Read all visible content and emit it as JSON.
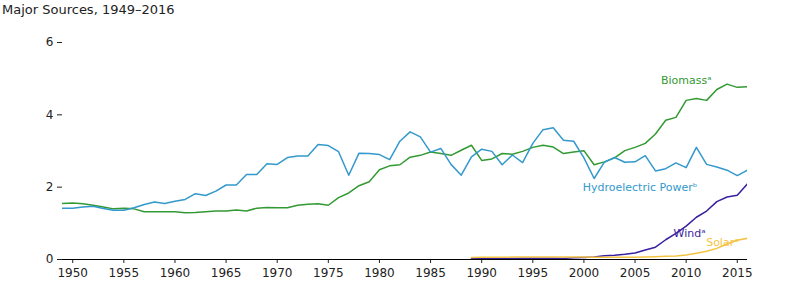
{
  "chart_data": {
    "type": "line",
    "title": "Major Sources, 1949–2016",
    "x": [
      1949,
      1950,
      1951,
      1952,
      1953,
      1954,
      1955,
      1956,
      1957,
      1958,
      1959,
      1960,
      1961,
      1962,
      1963,
      1964,
      1965,
      1966,
      1967,
      1968,
      1969,
      1970,
      1971,
      1972,
      1973,
      1974,
      1975,
      1976,
      1977,
      1978,
      1979,
      1980,
      1981,
      1982,
      1983,
      1984,
      1985,
      1986,
      1987,
      1988,
      1989,
      1990,
      1991,
      1992,
      1993,
      1994,
      1995,
      1996,
      1997,
      1998,
      1999,
      2000,
      2001,
      2002,
      2003,
      2004,
      2005,
      2006,
      2007,
      2008,
      2009,
      2010,
      2011,
      2012,
      2013,
      2014,
      2015,
      2016
    ],
    "series": [
      {
        "name": "Biomassᵃ",
        "color": "#339933",
        "values": [
          1.55,
          1.56,
          1.54,
          1.5,
          1.45,
          1.4,
          1.42,
          1.4,
          1.32,
          1.32,
          1.32,
          1.32,
          1.29,
          1.3,
          1.32,
          1.34,
          1.34,
          1.37,
          1.34,
          1.42,
          1.44,
          1.43,
          1.43,
          1.5,
          1.53,
          1.54,
          1.5,
          1.71,
          1.84,
          2.04,
          2.15,
          2.48,
          2.59,
          2.62,
          2.83,
          2.88,
          2.97,
          2.93,
          2.88,
          3.02,
          3.16,
          2.74,
          2.78,
          2.93,
          2.91,
          2.99,
          3.1,
          3.16,
          3.11,
          2.93,
          2.97,
          3.01,
          2.62,
          2.7,
          2.81,
          3.01,
          3.1,
          3.21,
          3.47,
          3.85,
          3.93,
          4.4,
          4.45,
          4.4,
          4.7,
          4.85,
          4.76,
          4.78
        ]
      },
      {
        "name": "Hydroelectric Powerᵇ",
        "color": "#3399cc",
        "values": [
          1.42,
          1.42,
          1.45,
          1.47,
          1.41,
          1.36,
          1.36,
          1.43,
          1.52,
          1.59,
          1.55,
          1.61,
          1.66,
          1.82,
          1.77,
          1.89,
          2.06,
          2.06,
          2.35,
          2.35,
          2.65,
          2.63,
          2.82,
          2.86,
          2.86,
          3.18,
          3.15,
          2.98,
          2.33,
          2.94,
          2.93,
          2.9,
          2.76,
          3.27,
          3.53,
          3.39,
          2.97,
          3.07,
          2.63,
          2.33,
          2.84,
          3.05,
          2.99,
          2.62,
          2.89,
          2.68,
          3.21,
          3.59,
          3.64,
          3.3,
          3.27,
          2.81,
          2.24,
          2.69,
          2.82,
          2.69,
          2.7,
          2.87,
          2.45,
          2.51,
          2.67,
          2.54,
          3.1,
          2.63,
          2.56,
          2.47,
          2.32,
          2.47
        ]
      },
      {
        "name": "Windᵃ",
        "color": "#3a1f9e",
        "values": [
          null,
          null,
          null,
          null,
          null,
          null,
          null,
          null,
          null,
          null,
          null,
          null,
          null,
          null,
          null,
          null,
          null,
          null,
          null,
          null,
          null,
          null,
          null,
          null,
          null,
          null,
          null,
          null,
          null,
          null,
          null,
          null,
          null,
          null,
          null,
          null,
          null,
          null,
          null,
          null,
          0.022,
          0.029,
          0.031,
          0.03,
          0.031,
          0.036,
          0.033,
          0.033,
          0.034,
          0.031,
          0.046,
          0.057,
          0.07,
          0.105,
          0.115,
          0.142,
          0.178,
          0.264,
          0.341,
          0.546,
          0.721,
          0.923,
          1.168,
          1.34,
          1.601,
          1.728,
          1.777,
          2.096
        ]
      },
      {
        "name": "Solarᵃ",
        "color": "#f5c342",
        "values": [
          null,
          null,
          null,
          null,
          null,
          null,
          null,
          null,
          null,
          null,
          null,
          null,
          null,
          null,
          null,
          null,
          null,
          null,
          null,
          null,
          null,
          null,
          null,
          null,
          null,
          null,
          null,
          null,
          null,
          null,
          null,
          null,
          null,
          null,
          null,
          null,
          null,
          null,
          null,
          null,
          0.055,
          0.059,
          0.062,
          0.064,
          0.066,
          0.068,
          0.069,
          0.07,
          0.07,
          0.069,
          0.068,
          0.066,
          0.065,
          0.063,
          0.062,
          0.063,
          0.063,
          0.068,
          0.076,
          0.089,
          0.098,
          0.126,
          0.171,
          0.227,
          0.307,
          0.427,
          0.532,
          0.587
        ]
      }
    ],
    "xlim": [
      1949,
      2016
    ],
    "xticks": [
      1950,
      1955,
      1960,
      1965,
      1970,
      1975,
      1980,
      1985,
      1990,
      1995,
      2000,
      2005,
      2010,
      2015
    ],
    "ylim": [
      0,
      6
    ],
    "yticks": [
      0,
      2,
      4,
      6
    ],
    "grid": false
  }
}
